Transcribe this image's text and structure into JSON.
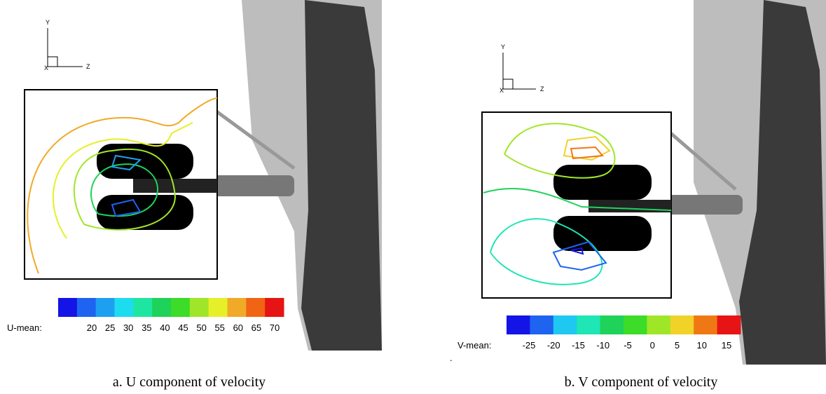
{
  "panels": [
    {
      "axes": {
        "y": "Y",
        "z": "Z",
        "x": "X"
      },
      "colorbar": {
        "label": "U-mean:",
        "ticks": [
          20,
          25,
          30,
          35,
          40,
          45,
          50,
          55,
          60,
          65,
          70
        ],
        "colors": [
          "#1414e6",
          "#1e64f0",
          "#1ea0f0",
          "#1edcf0",
          "#1ee6a0",
          "#1ed25a",
          "#3cdc28",
          "#a0e628",
          "#e6f028",
          "#f0aa28",
          "#f06414",
          "#e61414"
        ]
      },
      "caption": "a. U component of velocity"
    },
    {
      "axes": {
        "y": "Y",
        "z": "Z",
        "x": "X"
      },
      "colorbar": {
        "label": "V-mean:",
        "ticks": [
          -25,
          -20,
          -15,
          -10,
          -5,
          0,
          5,
          10,
          15
        ],
        "colors": [
          "#1414e6",
          "#1e64f0",
          "#1ec8f0",
          "#1ee6b4",
          "#1ed25a",
          "#3cdc28",
          "#a0e628",
          "#f0d228",
          "#f07814",
          "#e61414"
        ]
      },
      "stray_mark": ".",
      "caption": "b. V component of velocity"
    }
  ]
}
